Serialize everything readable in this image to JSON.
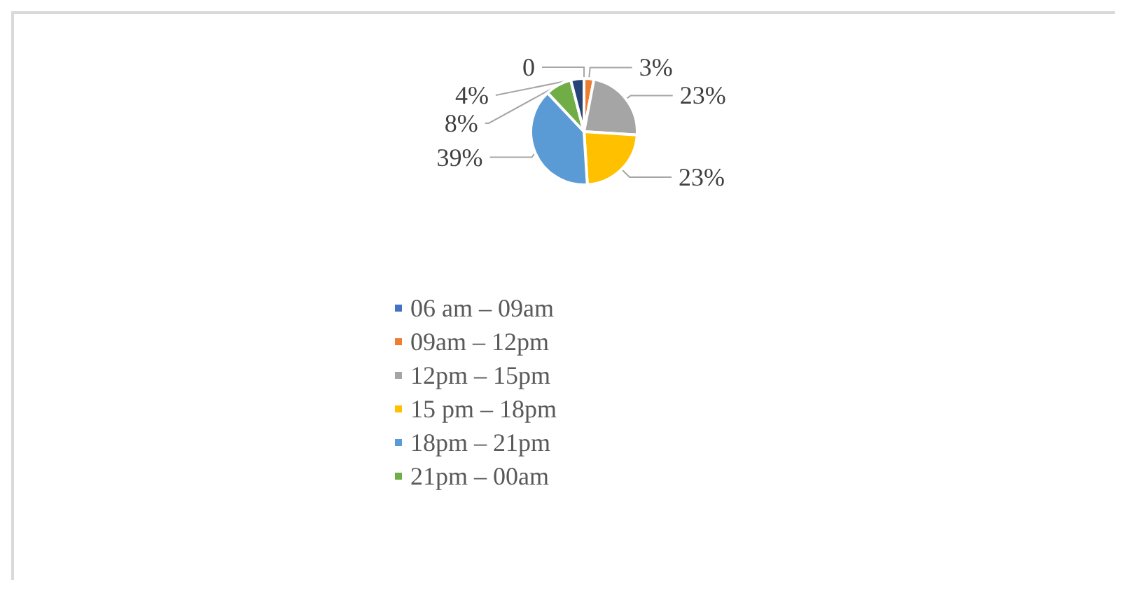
{
  "chart_data": {
    "type": "pie",
    "categories": [
      "06 am – 09am",
      "09am – 12pm",
      "12pm – 15pm",
      "15 pm – 18pm",
      "18pm – 21pm",
      "21pm – 00am",
      null
    ],
    "values": [
      0,
      3,
      23,
      23,
      39,
      8,
      4
    ],
    "colors": [
      "#4472c4",
      "#ed7d31",
      "#a5a5a5",
      "#ffc000",
      "#5b9bd5",
      "#70ad47",
      "#264478"
    ],
    "value_labels": [
      "0",
      "3%",
      "23%",
      "23%",
      "39%",
      "8%",
      "4%"
    ],
    "legend": "bottom"
  }
}
